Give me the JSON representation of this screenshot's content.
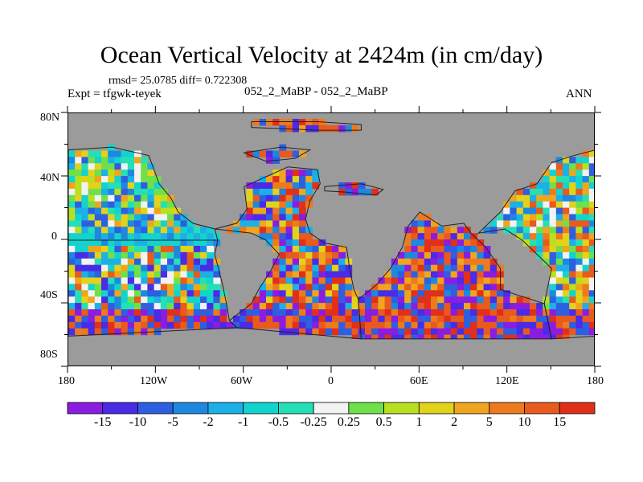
{
  "title": "Ocean Vertical Velocity at 2424m (in cm/day)",
  "stats": "rmsd= 25.0785 diff= 0.722308",
  "experiment": "Expt = tfgwk-teyek",
  "comparison": "052_2_MaBP - 052_2_MaBP",
  "season": "ANN",
  "lat_ticks": [
    "80N",
    "40N",
    "0",
    "40S",
    "80S"
  ],
  "lon_ticks": [
    "180",
    "120W",
    "60W",
    "0",
    "60E",
    "120E",
    "180"
  ],
  "colorbar": {
    "labels": [
      "-15",
      "-10",
      "-5",
      "-2",
      "-1",
      "-0.5",
      "-0.25",
      "0.25",
      "0.5",
      "1",
      "2",
      "5",
      "10",
      "15"
    ],
    "colors": [
      "#8a1de0",
      "#4a2be6",
      "#2e5fe0",
      "#1e88e0",
      "#1cb0e6",
      "#13d3cf",
      "#25dfb6",
      "#f2f2f2",
      "#6fe04a",
      "#b8e020",
      "#e3d21a",
      "#f0a51e",
      "#ee7a1e",
      "#e85a1e",
      "#e0301a"
    ]
  },
  "land_color": "#9b9b9b"
}
